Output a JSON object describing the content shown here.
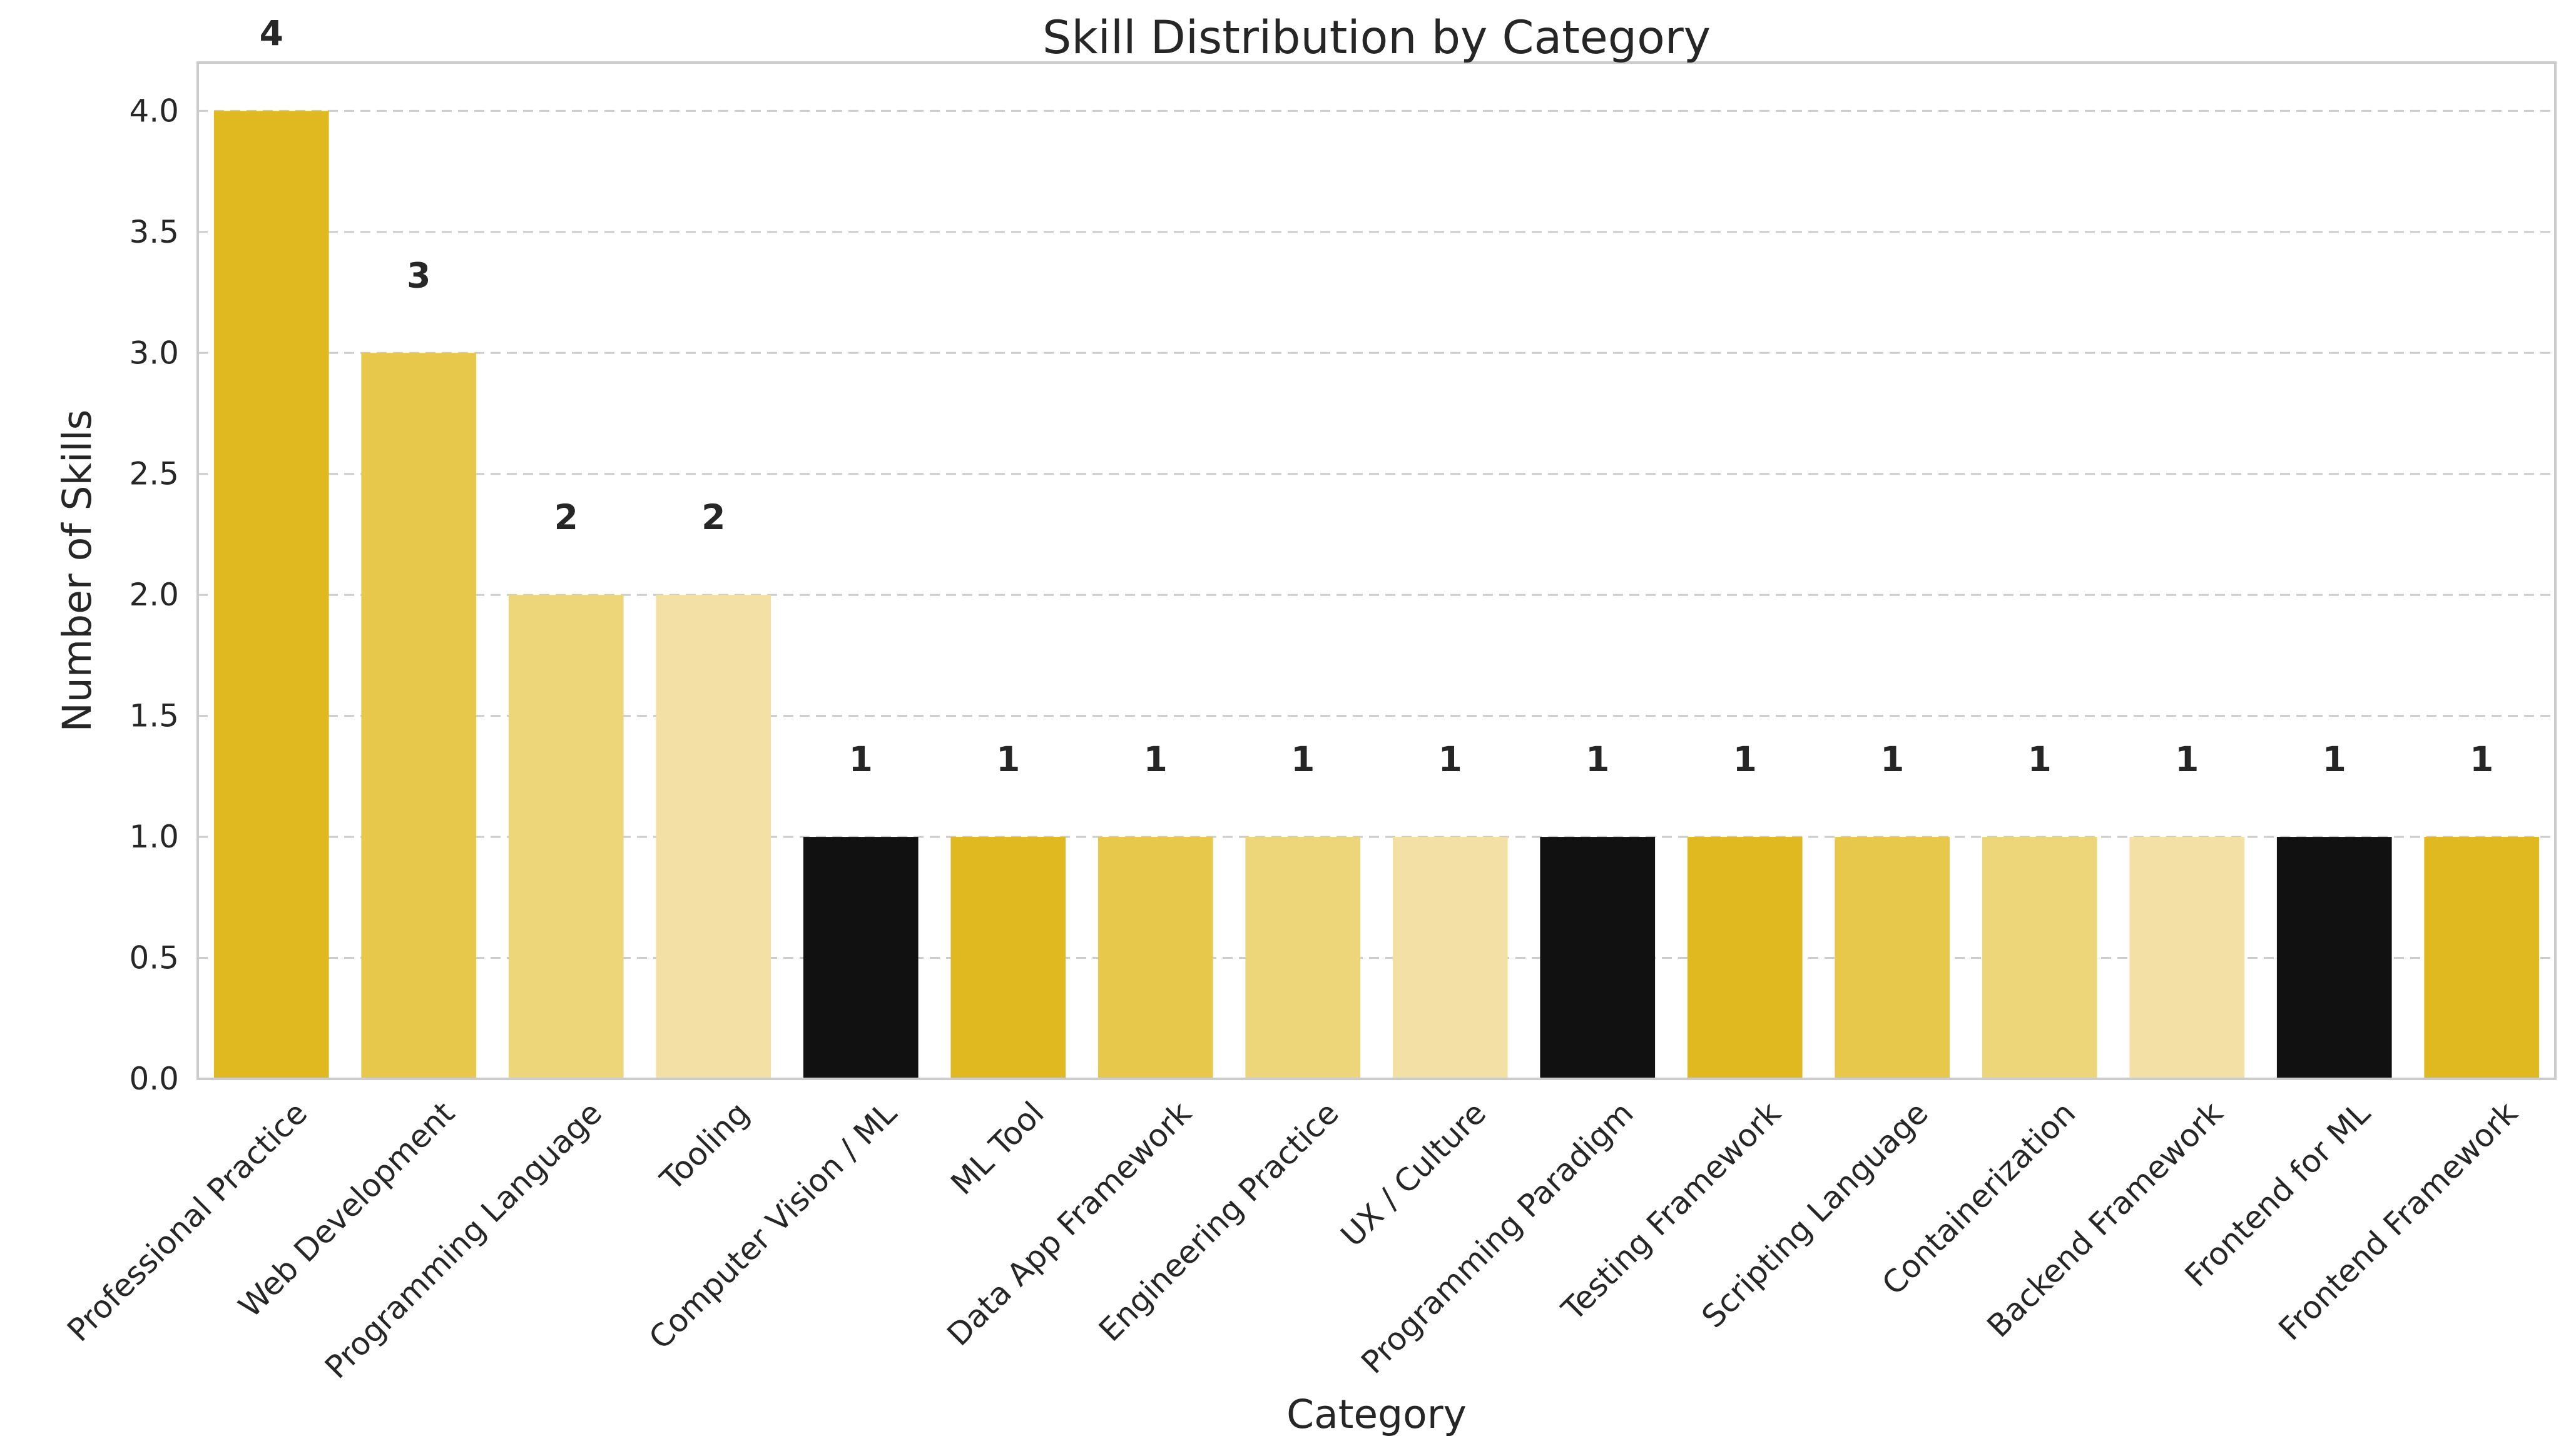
{
  "chart_data": {
    "type": "bar",
    "title": "Skill Distribution by Category",
    "xlabel": "Category",
    "ylabel": "Number of Skills",
    "categories": [
      "Professional Practice",
      "Web Development",
      "Programming Language",
      "Tooling",
      "Computer Vision / ML",
      "ML Tool",
      "Data App Framework",
      "Engineering Practice",
      "UX / Culture",
      "Programming Paradigm",
      "Testing Framework",
      "Scripting Language",
      "Containerization",
      "Backend Framework",
      "Frontend for ML",
      "Frontend Framework"
    ],
    "values": [
      4,
      3,
      2,
      2,
      1,
      1,
      1,
      1,
      1,
      1,
      1,
      1,
      1,
      1,
      1,
      1
    ],
    "data_labels": [
      "4",
      "3",
      "2",
      "2",
      "1",
      "1",
      "1",
      "1",
      "1",
      "1",
      "1",
      "1",
      "1",
      "1",
      "1",
      "1"
    ],
    "colors": [
      "#e0b820",
      "#e8c84a",
      "#edd57a",
      "#f2e0a4",
      "#111111"
    ],
    "ylim": [
      0,
      4.2
    ],
    "yticks": [
      0.0,
      0.5,
      1.0,
      1.5,
      2.0,
      2.5,
      3.0,
      3.5,
      4.0
    ],
    "ytick_labels": [
      "0.0",
      "0.5",
      "1.0",
      "1.5",
      "2.0",
      "2.5",
      "3.0",
      "3.5",
      "4.0"
    ],
    "grid": "horizontal dashed",
    "legend": "none"
  }
}
